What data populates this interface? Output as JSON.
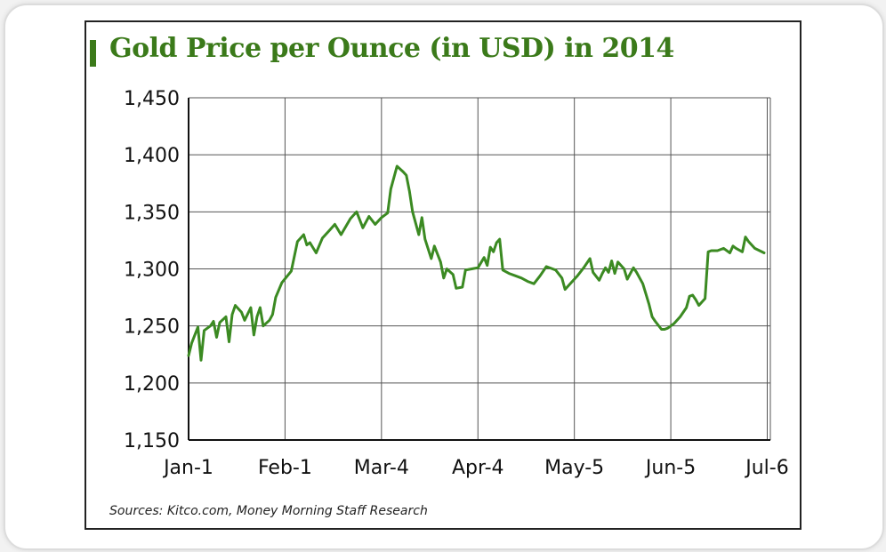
{
  "chart_data": {
    "type": "line",
    "title": "Gold Price per Ounce (in USD) in 2014",
    "xlabel": "",
    "ylabel": "",
    "ylim": [
      1150,
      1450
    ],
    "y_ticks": [
      "1,450",
      "1,400",
      "1,350",
      "1,300",
      "1,250",
      "1,200",
      "1,150"
    ],
    "y_tick_values": [
      1450,
      1400,
      1350,
      1300,
      1250,
      1200,
      1150
    ],
    "x_ticks": [
      "Jan-1",
      "Feb-1",
      "Mar-4",
      "Apr-4",
      "May-5",
      "Jun-5",
      "Jul-6"
    ],
    "x_tick_index": [
      0,
      31,
      62,
      93,
      124,
      155,
      186
    ],
    "x_range_index": [
      0,
      187
    ],
    "grid": true,
    "line_color": "#3b8a22",
    "series": [
      {
        "values": [
          1224,
          1235,
          1249,
          1220,
          1246,
          1250,
          1254,
          1240,
          1253,
          1258,
          1236,
          1260,
          1268,
          1262,
          1255,
          1266,
          1242,
          1258,
          1266,
          1250,
          1255,
          1260,
          1275,
          1288,
          1298,
          1324,
          1330,
          1321,
          1323,
          1314,
          1327,
          1333,
          1339,
          1330,
          1344,
          1350,
          1336,
          1346,
          1339,
          1345,
          1349,
          1370,
          1390,
          1385,
          1382,
          1368,
          1350,
          1330,
          1345,
          1326,
          1309,
          1320,
          1306,
          1292,
          1300,
          1295,
          1283,
          1284,
          1299,
          1300,
          1301,
          1310,
          1303,
          1319,
          1315,
          1323,
          1326,
          1299,
          1296,
          1294,
          1292,
          1289,
          1287,
          1294,
          1302,
          1300,
          1299,
          1292,
          1282,
          1288,
          1294,
          1301,
          1309,
          1297,
          1290,
          1296,
          1301,
          1297,
          1307,
          1296,
          1306,
          1300,
          1291,
          1301,
          1297,
          1287,
          1278,
          1269,
          1258,
          1254,
          1247,
          1247,
          1248,
          1252,
          1258,
          1266,
          1276,
          1277,
          1273,
          1268,
          1274,
          1315,
          1316,
          1316,
          1318,
          1314,
          1320,
          1318,
          1315,
          1328,
          1324,
          1318,
          1314
        ],
        "x_index": [
          0,
          1,
          3,
          4,
          5,
          7,
          8,
          9,
          10,
          12,
          13,
          14,
          15,
          17,
          18,
          20,
          21,
          22,
          23,
          24,
          26,
          27,
          28,
          30,
          33,
          35,
          37,
          38,
          39,
          41,
          43,
          45,
          47,
          49,
          52,
          54,
          56,
          58,
          60,
          62,
          64,
          65,
          67,
          69,
          70,
          71,
          72,
          74,
          75,
          76,
          78,
          79,
          81,
          82,
          83,
          85,
          86,
          88,
          89,
          91,
          93,
          95,
          96,
          97,
          98,
          99,
          100,
          101,
          103,
          105,
          107,
          109,
          111,
          113,
          115,
          117,
          118,
          120,
          121,
          123,
          125,
          127,
          129,
          130,
          132,
          133,
          134,
          135,
          136,
          137,
          138,
          140,
          141,
          143,
          144,
          146,
          147,
          148,
          149,
          150,
          152,
          153,
          154,
          156,
          158,
          160,
          161,
          162,
          163,
          164,
          166,
          167,
          168,
          170,
          172,
          174,
          175,
          176,
          178,
          179,
          180,
          182,
          185
        ]
      }
    ]
  },
  "source_note": "Sources: Kitco.com, Money Morning Staff Research"
}
